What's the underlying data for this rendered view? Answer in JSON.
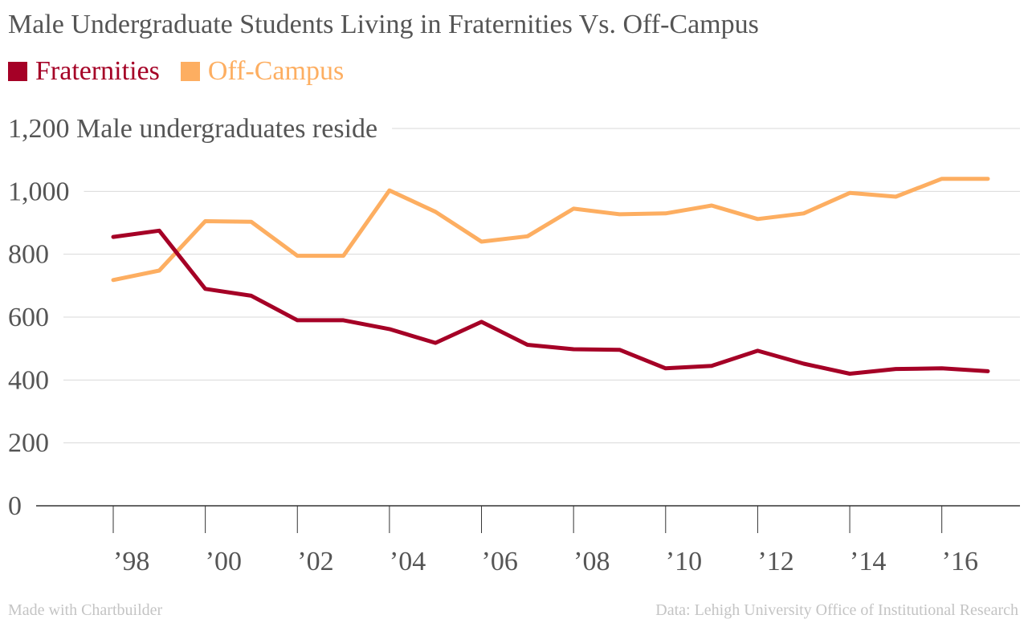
{
  "title": "Male Undergraduate Students Living in Fraternities Vs. Off-Campus",
  "footer": {
    "left": "Made with Chartbuilder",
    "right": "Data: Lehigh University Office of Institutional Research"
  },
  "colors": {
    "fraternities": "#A50026",
    "off_campus": "#FDAE61",
    "grid": "#d9d9d9",
    "axis": "#333333"
  },
  "chart_data": {
    "type": "line",
    "title": "Male Undergraduate Students Living in Fraternities Vs. Off-Campus",
    "ylabel": "Male undergraduates reside",
    "ylim": [
      0,
      1200
    ],
    "y_ticks": [
      0,
      200,
      400,
      600,
      800,
      1000,
      1200
    ],
    "y_tick_labels": [
      "0",
      "200",
      "400",
      "600",
      "800",
      "1,000",
      "1,200"
    ],
    "x": [
      1998,
      1999,
      2000,
      2001,
      2002,
      2003,
      2004,
      2005,
      2006,
      2007,
      2008,
      2009,
      2010,
      2011,
      2012,
      2013,
      2014,
      2015,
      2016,
      2017
    ],
    "x_ticks": [
      1998,
      2000,
      2002,
      2004,
      2006,
      2008,
      2010,
      2012,
      2014,
      2016
    ],
    "x_tick_labels": [
      "’98",
      "’00",
      "’02",
      "’04",
      "’06",
      "’08",
      "’10",
      "’12",
      "’14",
      "’16"
    ],
    "grid": true,
    "legend_position": "top-left",
    "series": [
      {
        "name": "Fraternities",
        "values": [
          855,
          875,
          690,
          668,
          590,
          590,
          562,
          518,
          585,
          512,
          498,
          496,
          437,
          445,
          493,
          452,
          420,
          435,
          437,
          428
        ]
      },
      {
        "name": "Off-Campus",
        "values": [
          718,
          748,
          905,
          903,
          795,
          795,
          1003,
          935,
          840,
          857,
          945,
          927,
          930,
          955,
          912,
          930,
          995,
          983,
          1040,
          1040
        ]
      }
    ]
  }
}
